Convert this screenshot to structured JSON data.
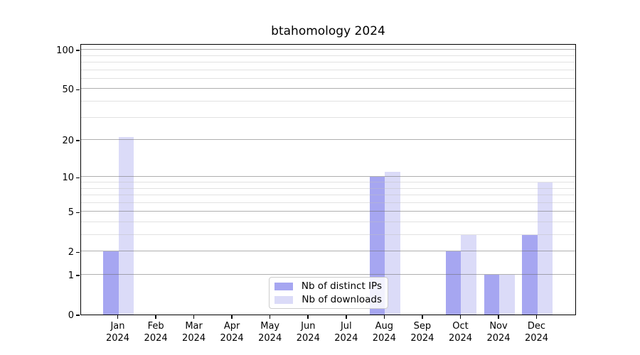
{
  "figure": {
    "title": "btahomology 2024"
  },
  "chart_data": {
    "type": "bar",
    "title": "btahomology 2024",
    "categories": [
      "Jan 2024",
      "Feb 2024",
      "Mar 2024",
      "Apr 2024",
      "May 2024",
      "Jun 2024",
      "Jul 2024",
      "Aug 2024",
      "Sep 2024",
      "Oct 2024",
      "Nov 2024",
      "Dec 2024"
    ],
    "series": [
      {
        "name": "Nb of distinct IPs",
        "color": "#a6a6f1",
        "values": [
          2,
          0,
          0,
          0,
          0,
          0,
          0,
          10,
          0,
          2,
          1,
          3
        ]
      },
      {
        "name": "Nb of downloads",
        "color": "#dbdbf8",
        "values": [
          21,
          0,
          0,
          0,
          0,
          0,
          0,
          11,
          0,
          3,
          1,
          9
        ]
      }
    ],
    "yscale": "log1p",
    "ylim": [
      0,
      110
    ],
    "yticks": [
      0,
      1,
      2,
      5,
      10,
      20,
      50,
      100
    ],
    "yticks_minor": [
      3,
      4,
      6,
      7,
      8,
      9,
      30,
      40,
      60,
      70,
      80,
      90
    ],
    "grid": "major+minor over bars",
    "legend_position": "lower center"
  }
}
